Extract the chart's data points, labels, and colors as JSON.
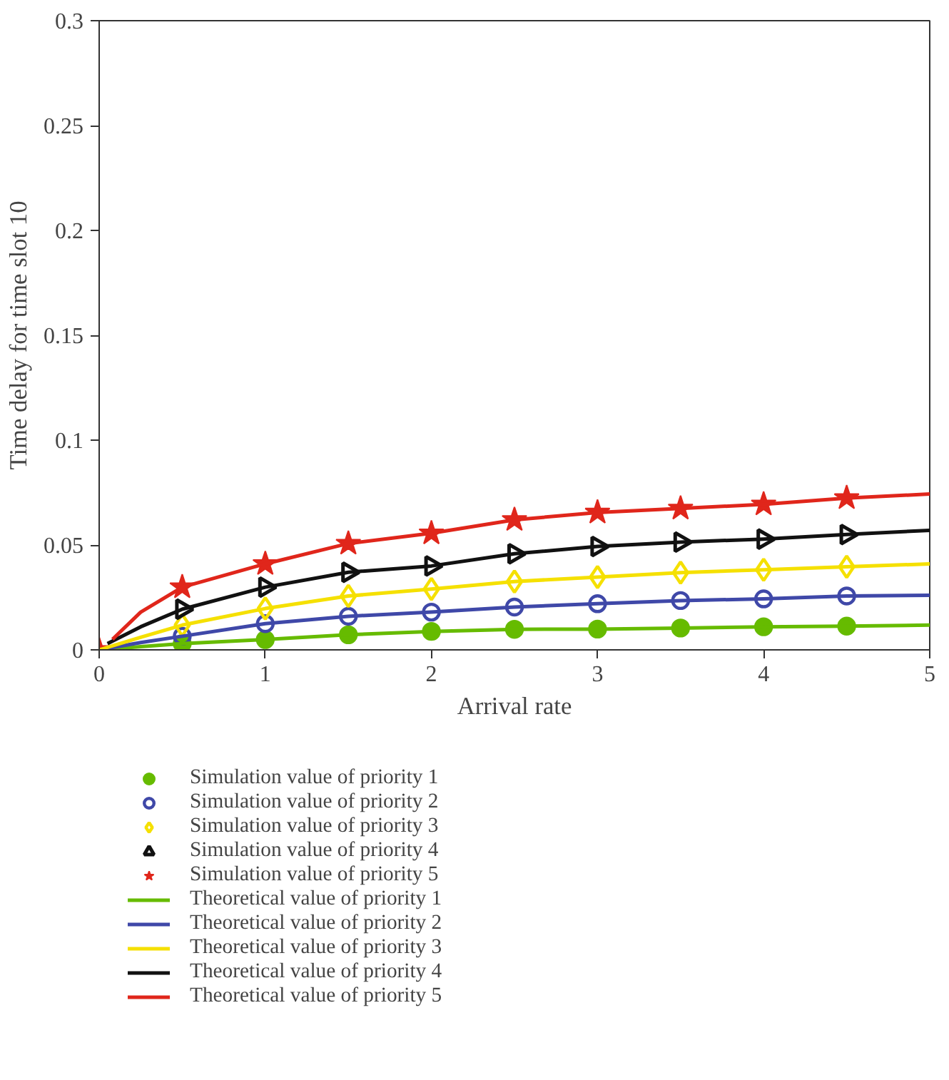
{
  "chart_data": {
    "type": "line",
    "xlabel": "Arrival rate",
    "ylabel": "Time delay for time slot 10",
    "xlim": [
      0,
      5
    ],
    "ylim": [
      0,
      0.3
    ],
    "xticks": [
      0,
      1,
      2,
      3,
      4,
      5
    ],
    "yticks": [
      0,
      0.05,
      0.1,
      0.15,
      0.2,
      0.25,
      0.3
    ],
    "grid": false,
    "legend": "bottom",
    "series": [
      {
        "name": "Simulation value of priority 1",
        "type": "scatter",
        "marker": "circle",
        "color": "#66bb00",
        "x": [
          0.5,
          1,
          1.5,
          2,
          2.5,
          3,
          3.5,
          4,
          4.5
        ],
        "values": [
          0.003,
          0.0049,
          0.0072,
          0.0088,
          0.0098,
          0.0099,
          0.0104,
          0.011,
          0.0113
        ]
      },
      {
        "name": "Simulation value of priority 2",
        "type": "scatter",
        "marker": "circle",
        "color": "#3f48a8",
        "x": [
          0.5,
          1,
          1.5,
          2,
          2.5,
          3,
          3.5,
          4,
          4.5
        ],
        "values": [
          0.0065,
          0.0125,
          0.016,
          0.018,
          0.0204,
          0.022,
          0.0235,
          0.0243,
          0.0257
        ]
      },
      {
        "name": "Simulation value of priority 3",
        "type": "scatter",
        "marker": "diamond",
        "color": "#f5e000",
        "x": [
          0.5,
          1,
          1.5,
          2,
          2.5,
          3,
          3.5,
          4,
          4.5
        ],
        "values": [
          0.0118,
          0.0197,
          0.0257,
          0.029,
          0.0326,
          0.0347,
          0.0368,
          0.0382,
          0.0396
        ]
      },
      {
        "name": "Simulation value of priority 4",
        "type": "scatter",
        "marker": "triangle",
        "color": "#111111",
        "x": [
          0.5,
          1,
          1.5,
          2,
          2.5,
          3,
          3.5,
          4,
          4.5
        ],
        "values": [
          0.0194,
          0.0299,
          0.037,
          0.04,
          0.0458,
          0.0493,
          0.0514,
          0.0528,
          0.055
        ]
      },
      {
        "name": "Simulation value of priority 5",
        "type": "scatter",
        "marker": "star",
        "color": "#e0261b",
        "x": [
          0,
          0.5,
          1,
          1.5,
          2,
          2.5,
          3,
          3.5,
          4,
          4.5
        ],
        "values": [
          0,
          0.0299,
          0.041,
          0.0507,
          0.0556,
          0.062,
          0.0655,
          0.0674,
          0.0694,
          0.0724
        ]
      },
      {
        "name": "Theoretical value of priority 1",
        "color": "#66bb00",
        "x": [
          0,
          0.25,
          0.5,
          1,
          1.5,
          2,
          2.5,
          3,
          3.5,
          4,
          4.5,
          5
        ],
        "values": [
          0,
          0.0015,
          0.003,
          0.0049,
          0.0072,
          0.0088,
          0.0098,
          0.0099,
          0.0104,
          0.011,
          0.0113,
          0.0118
        ]
      },
      {
        "name": "Theoretical value of priority 2",
        "color": "#3f48a8",
        "x": [
          0,
          0.25,
          0.5,
          1,
          1.5,
          2,
          2.5,
          3,
          3.5,
          4,
          4.5,
          5
        ],
        "values": [
          0,
          0.0035,
          0.0065,
          0.0125,
          0.016,
          0.018,
          0.0204,
          0.022,
          0.0235,
          0.0243,
          0.0257,
          0.026
        ]
      },
      {
        "name": "Theoretical value of priority 3",
        "color": "#f5e000",
        "x": [
          0,
          0.25,
          0.5,
          1,
          1.5,
          2,
          2.5,
          3,
          3.5,
          4,
          4.5,
          5
        ],
        "values": [
          0,
          0.006,
          0.0118,
          0.0197,
          0.0257,
          0.029,
          0.0326,
          0.0347,
          0.0368,
          0.0382,
          0.0396,
          0.041
        ]
      },
      {
        "name": "Theoretical value of priority 4",
        "color": "#111111",
        "x": [
          0.05,
          0.25,
          0.5,
          1,
          1.5,
          2,
          2.5,
          3,
          3.5,
          4,
          4.5,
          5
        ],
        "values": [
          0.003,
          0.011,
          0.0194,
          0.0299,
          0.037,
          0.04,
          0.0458,
          0.0493,
          0.0514,
          0.0528,
          0.055,
          0.057
        ]
      },
      {
        "name": "Theoretical value of priority 5",
        "color": "#e0261b",
        "x": [
          0.08,
          0.25,
          0.5,
          1,
          1.5,
          2,
          2.5,
          3,
          3.5,
          4,
          4.5,
          5
        ],
        "values": [
          0.005,
          0.018,
          0.0299,
          0.041,
          0.0507,
          0.0556,
          0.062,
          0.0655,
          0.0674,
          0.0694,
          0.0724,
          0.0743
        ]
      }
    ]
  }
}
